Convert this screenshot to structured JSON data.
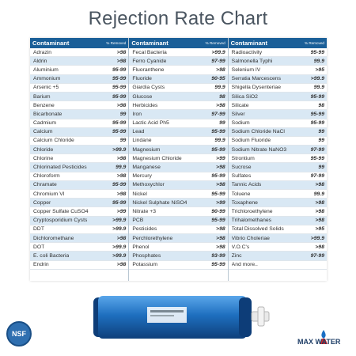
{
  "title": "Rejection Rate Chart",
  "header": {
    "contaminant": "Contaminant",
    "removed": "% Removed"
  },
  "columns": [
    [
      {
        "name": "Adrazin",
        "value": ">98"
      },
      {
        "name": "Aldrin",
        "value": ">98"
      },
      {
        "name": "Aluminium",
        "value": "95-99"
      },
      {
        "name": "Ammonium",
        "value": "95-99"
      },
      {
        "name": "Arsenic +5",
        "value": "95-99"
      },
      {
        "name": "Barium",
        "value": "95-99"
      },
      {
        "name": "Benzene",
        "value": ">98"
      },
      {
        "name": "Bicarbonate",
        "value": "99"
      },
      {
        "name": "Cadmium",
        "value": "95-99"
      },
      {
        "name": "Calcium",
        "value": "95-99"
      },
      {
        "name": "Calcium Chloride",
        "value": "99"
      },
      {
        "name": "Chloride",
        "value": ">99.9"
      },
      {
        "name": "Chlorine",
        "value": ">98"
      },
      {
        "name": "Chlorinated Pesticides",
        "value": "99.9"
      },
      {
        "name": "Chloroform",
        "value": ">98"
      },
      {
        "name": "Chramate",
        "value": "95-99"
      },
      {
        "name": "Chromium VI",
        "value": ">98"
      },
      {
        "name": "Copper",
        "value": "95-99"
      },
      {
        "name": "Copper Sulfate CuSO4",
        "value": ">99"
      },
      {
        "name": "Cryptosporidium Cysts",
        "value": ">99.9"
      },
      {
        "name": "DDT",
        "value": ">99.9"
      },
      {
        "name": "Dichloromethane",
        "value": ">98"
      },
      {
        "name": "DOT",
        "value": ">99.9"
      },
      {
        "name": "E. coli Bacteria",
        "value": ">99.9"
      },
      {
        "name": "Endrin",
        "value": ">98"
      }
    ],
    [
      {
        "name": "Fecal Bacteria",
        "value": ">99.9"
      },
      {
        "name": "Ferro Cyanide",
        "value": "97-99"
      },
      {
        "name": "Fluoranthene",
        "value": ">98"
      },
      {
        "name": "Fluoride",
        "value": "90-95"
      },
      {
        "name": "Giardia Cysts",
        "value": "99.9"
      },
      {
        "name": "Glucose",
        "value": "98"
      },
      {
        "name": "Herbicides",
        "value": ">98"
      },
      {
        "name": "Iron",
        "value": "97-99"
      },
      {
        "name": "Lactic Acid Ph5",
        "value": "99"
      },
      {
        "name": "Lead",
        "value": "95-99"
      },
      {
        "name": "Lindane",
        "value": "99.9"
      },
      {
        "name": "Magnesium",
        "value": "95-99"
      },
      {
        "name": "Magnesium Chloride",
        "value": ">99"
      },
      {
        "name": "Manganese",
        "value": ">98"
      },
      {
        "name": "Mercury",
        "value": "95-99"
      },
      {
        "name": "Methoxychlor",
        "value": ">98"
      },
      {
        "name": "Nickel",
        "value": "95-99"
      },
      {
        "name": "Nickel Sulphate NiSO4",
        "value": ">99"
      },
      {
        "name": "Nitrate +3",
        "value": "90-99"
      },
      {
        "name": "PCB",
        "value": "95-99"
      },
      {
        "name": "Pesticides",
        "value": ">98"
      },
      {
        "name": "Perchlorethylene",
        "value": ">98"
      },
      {
        "name": "Phenol",
        "value": ">98"
      },
      {
        "name": "Phosphates",
        "value": "93-99"
      },
      {
        "name": "Potassium",
        "value": "95-99"
      }
    ],
    [
      {
        "name": "Radioactivity",
        "value": "95-99"
      },
      {
        "name": "Salmonella Typhi",
        "value": "99.9"
      },
      {
        "name": "Selenium IV",
        "value": ">95"
      },
      {
        "name": "Serratia Marcescens",
        "value": ">99.9"
      },
      {
        "name": "Shigella Dysenteriae",
        "value": "99.9"
      },
      {
        "name": "Silica SiO2",
        "value": "95-99"
      },
      {
        "name": "Silicate",
        "value": "98"
      },
      {
        "name": "Silver",
        "value": "95-99"
      },
      {
        "name": "Sodium",
        "value": "95-99"
      },
      {
        "name": "Sodium Chloride NaCl",
        "value": "99"
      },
      {
        "name": "Sodium Fluoride",
        "value": "99"
      },
      {
        "name": "Sodium Nitrate NaNO3",
        "value": "97-99"
      },
      {
        "name": "Strontium",
        "value": "95-99"
      },
      {
        "name": "Sucrose",
        "value": "99"
      },
      {
        "name": "Sulfates",
        "value": "97-99"
      },
      {
        "name": "Tannic Acids",
        "value": ">98"
      },
      {
        "name": "Toluene",
        "value": "99.9"
      },
      {
        "name": "Toxaphene",
        "value": ">98"
      },
      {
        "name": "Trichloroethylene",
        "value": ">98"
      },
      {
        "name": "Trihalomethanes",
        "value": ">98"
      },
      {
        "name": "Total Dissolved Solids",
        "value": ">95"
      },
      {
        "name": "Vibrio Choleriae",
        "value": ">99.9"
      },
      {
        "name": "V.O.C's",
        "value": ">98"
      },
      {
        "name": "Zinc",
        "value": "97-99"
      },
      {
        "name": "And more..",
        "value": ""
      }
    ]
  ],
  "badge": {
    "text": "NSF"
  },
  "logo": {
    "text": "MAX WATER"
  },
  "colors": {
    "header": "#1a5f98",
    "stripe": "#d9e8f4",
    "membrane": "#1e6fbf",
    "title": "#4a5560"
  }
}
